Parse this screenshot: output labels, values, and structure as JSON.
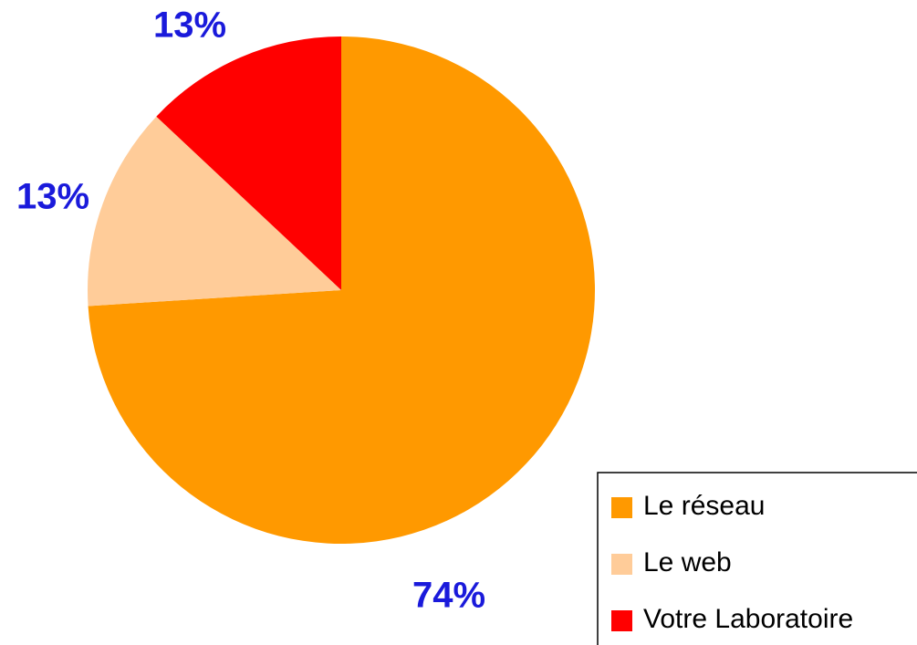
{
  "chart_data": {
    "type": "pie",
    "categories": [
      "Le réseau",
      "Le web",
      "Votre Laboratoire"
    ],
    "values": [
      74,
      13,
      13
    ],
    "value_labels": [
      "74%",
      "13%",
      "13%"
    ],
    "colors": [
      "#ff9900",
      "#ffcc99",
      "#ff0000"
    ],
    "legend": "bottom-right"
  }
}
